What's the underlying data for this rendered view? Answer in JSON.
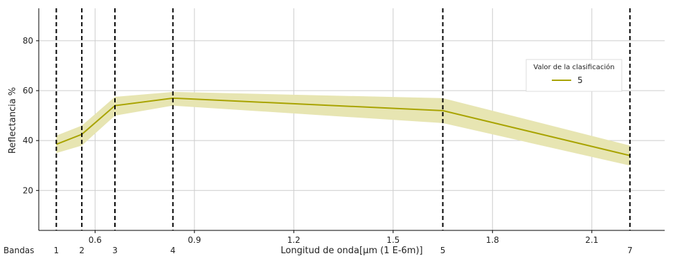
{
  "chart_data": {
    "type": "line",
    "xlabel": "Longitud de onda[μm (1 E-6m)]",
    "ylabel": "Reflectancia %",
    "xlim": [
      0.43,
      2.32
    ],
    "ylim": [
      4,
      93
    ],
    "x_ticks": [
      0.6,
      0.9,
      1.2,
      1.5,
      1.8,
      2.1
    ],
    "x_tick_labels": [
      "0.6",
      "0.9",
      "1.2",
      "1.5",
      "1.8",
      "2.1"
    ],
    "y_ticks": [
      20,
      40,
      60,
      80
    ],
    "y_tick_labels": [
      "20",
      "40",
      "60",
      "80"
    ],
    "grid": true,
    "legend": {
      "title": "Valor de la clasificación",
      "position": "upper-right",
      "entries": [
        "5"
      ]
    },
    "bands_row_label": "Bandas",
    "bands": [
      {
        "label": "1",
        "x": 0.483
      },
      {
        "label": "2",
        "x": 0.56
      },
      {
        "label": "3",
        "x": 0.66
      },
      {
        "label": "4",
        "x": 0.835
      },
      {
        "label": "5",
        "x": 1.65
      },
      {
        "label": "7",
        "x": 2.215
      }
    ],
    "series": [
      {
        "name": "5",
        "color": "#a8a300",
        "band_fill": "#e7e5b2",
        "x": [
          0.483,
          0.56,
          0.66,
          0.835,
          1.65,
          2.215
        ],
        "y": [
          38.5,
          42.5,
          54.0,
          57.0,
          52.0,
          34.0
        ],
        "y_low": [
          35.0,
          38.0,
          50.0,
          54.0,
          47.0,
          30.0
        ],
        "y_high": [
          42.0,
          46.0,
          57.5,
          59.5,
          57.0,
          38.0
        ]
      }
    ]
  }
}
